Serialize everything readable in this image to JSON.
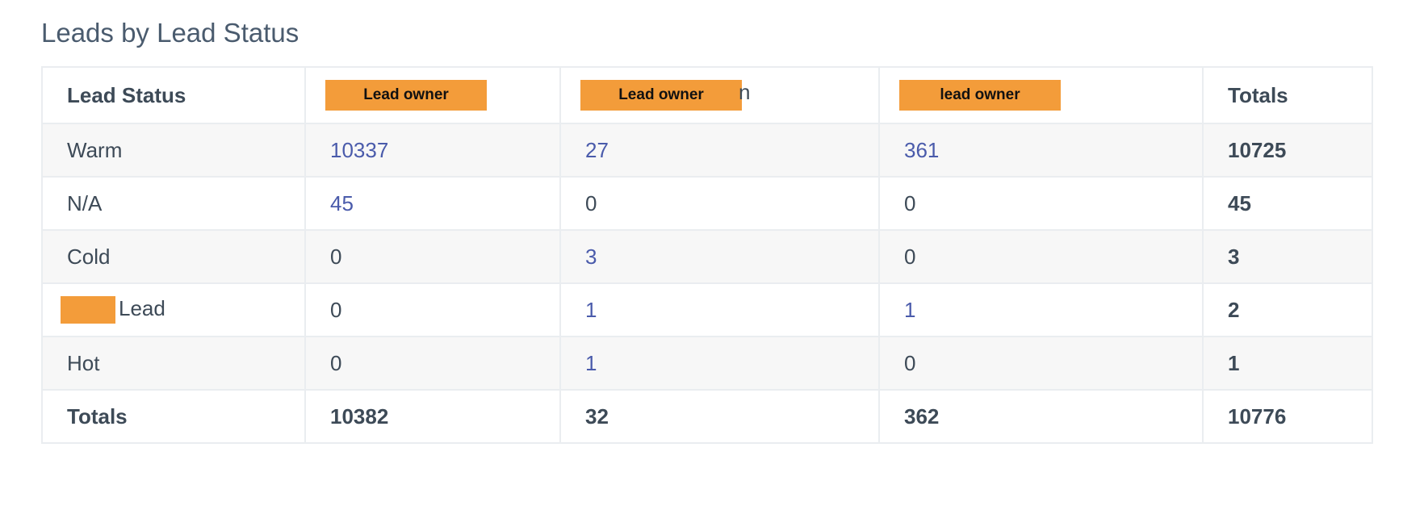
{
  "report": {
    "title": "Leads by Lead Status",
    "columns": {
      "status": "Lead Status",
      "owner1": "Lead owner",
      "owner2": "Lead owner",
      "owner2_tail": "n",
      "owner3": "lead owner",
      "totals": "Totals"
    },
    "rows": [
      {
        "status": "Warm",
        "owner1": "10337",
        "owner2": "27",
        "owner3": "361",
        "total": "10725"
      },
      {
        "status": "N/A",
        "owner1": "45",
        "owner2": "0",
        "owner3": "0",
        "total": "45"
      },
      {
        "status": "Cold",
        "owner1": "0",
        "owner2": "3",
        "owner3": "0",
        "total": "3"
      },
      {
        "status": "Lead",
        "owner1": "0",
        "owner2": "1",
        "owner3": "1",
        "total": "2"
      },
      {
        "status": "Hot",
        "owner1": "0",
        "owner2": "1",
        "owner3": "0",
        "total": "1"
      }
    ],
    "totals": {
      "label": "Totals",
      "owner1": "10382",
      "owner2": "32",
      "owner3": "362",
      "total": "10776"
    }
  },
  "colors": {
    "redaction": "#f39c3a",
    "link": "#4a5bab",
    "text": "#3d4a57",
    "row_alt": "#f7f7f7",
    "border": "#eaedf0"
  }
}
